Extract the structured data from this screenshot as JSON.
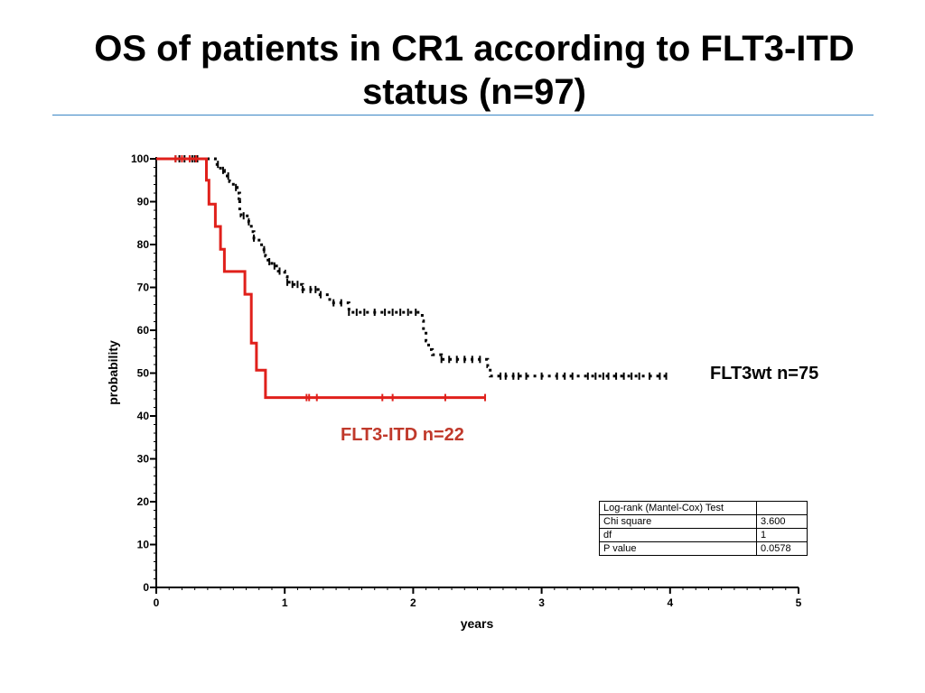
{
  "slide": {
    "title": "OS of patients in CR1 according to FLT3-ITD status (n=97)"
  },
  "colors": {
    "flt3wt": "#000000",
    "flt3itd": "#e0201b",
    "flt3itd_label": "#c0392b",
    "title_rule": "#3a86c4"
  },
  "chart_data": {
    "type": "line",
    "subtype": "kaplan-meier",
    "xlabel": "years",
    "ylabel": "probability",
    "xlim": [
      0,
      5
    ],
    "ylim": [
      0,
      100
    ],
    "x_ticks": [
      0,
      1,
      2,
      3,
      4,
      5
    ],
    "y_ticks": [
      0,
      10,
      20,
      30,
      40,
      50,
      60,
      70,
      80,
      90,
      100
    ],
    "grid": false,
    "series": [
      {
        "name": "FLT3wt n=75",
        "style": "dotted",
        "color": "#000000",
        "steps": [
          [
            0,
            100
          ],
          [
            0.45,
            100
          ],
          [
            0.46,
            98.7
          ],
          [
            0.5,
            97.3
          ],
          [
            0.53,
            96.0
          ],
          [
            0.57,
            94.7
          ],
          [
            0.6,
            93.3
          ],
          [
            0.63,
            92.0
          ],
          [
            0.65,
            90.7
          ],
          [
            0.63,
            90.7
          ],
          [
            0.65,
            88.0
          ],
          [
            0.66,
            86.7
          ],
          [
            0.72,
            85.3
          ],
          [
            0.74,
            83.0
          ],
          [
            0.76,
            81.5
          ],
          [
            0.8,
            80.4
          ],
          [
            0.82,
            78.8
          ],
          [
            0.85,
            77.3
          ],
          [
            0.87,
            76.0
          ],
          [
            0.9,
            75.0
          ],
          [
            0.95,
            73.8
          ],
          [
            1.0,
            72.5
          ],
          [
            1.02,
            71.2
          ],
          [
            1.05,
            70.7
          ],
          [
            1.14,
            69.5
          ],
          [
            1.26,
            68.3
          ],
          [
            1.35,
            66.4
          ],
          [
            1.5,
            64.2
          ],
          [
            2.07,
            62.2
          ],
          [
            2.08,
            60.0
          ],
          [
            2.1,
            57.5
          ],
          [
            2.12,
            55.5
          ],
          [
            2.15,
            54.3
          ],
          [
            2.22,
            53.2
          ],
          [
            2.58,
            51.5
          ],
          [
            2.6,
            49.3
          ],
          [
            3.97,
            49.3
          ]
        ],
        "censored": [
          0.15,
          0.18,
          0.22,
          0.26,
          0.28,
          0.3,
          0.32,
          0.48,
          0.52,
          0.56,
          0.62,
          0.68,
          0.72,
          0.76,
          0.84,
          0.88,
          0.92,
          0.96,
          1.02,
          1.06,
          1.1,
          1.14,
          1.2,
          1.24,
          1.28,
          1.38,
          1.44,
          1.5,
          1.56,
          1.62,
          1.7,
          1.78,
          1.84,
          1.9,
          1.96,
          2.02,
          2.22,
          2.28,
          2.34,
          2.4,
          2.46,
          2.52,
          2.68,
          2.72,
          2.78,
          2.82,
          2.88,
          3.0,
          3.12,
          3.18,
          3.24,
          3.36,
          3.42,
          3.48,
          3.52,
          3.58,
          3.64,
          3.7,
          3.76,
          3.84,
          3.92,
          3.97
        ]
      },
      {
        "name": "FLT3-ITD n=22",
        "style": "solid",
        "color": "#e0201b",
        "steps": [
          [
            0,
            100
          ],
          [
            0.39,
            100
          ],
          [
            0.39,
            95.0
          ],
          [
            0.41,
            95.0
          ],
          [
            0.41,
            89.4
          ],
          [
            0.46,
            89.4
          ],
          [
            0.46,
            84.2
          ],
          [
            0.5,
            84.2
          ],
          [
            0.5,
            78.9
          ],
          [
            0.53,
            78.9
          ],
          [
            0.53,
            73.7
          ],
          [
            0.69,
            73.7
          ],
          [
            0.69,
            68.4
          ],
          [
            0.74,
            68.4
          ],
          [
            0.74,
            57.0
          ],
          [
            0.78,
            57.0
          ],
          [
            0.78,
            50.7
          ],
          [
            0.85,
            50.7
          ],
          [
            0.85,
            44.3
          ],
          [
            2.56,
            44.3
          ]
        ],
        "censored": [
          0.15,
          0.2,
          0.26,
          0.31,
          1.17,
          1.19,
          1.25,
          1.76,
          1.84,
          2.25,
          2.56
        ]
      }
    ],
    "annotations": [
      {
        "text": "FLT3wt n=75",
        "series": 0
      },
      {
        "text": "FLT3-ITD n=22",
        "series": 1
      }
    ],
    "stats_table": {
      "title": "Log-rank (Mantel-Cox) Test",
      "rows": [
        {
          "label": "Chi square",
          "value": "3.600"
        },
        {
          "label": "df",
          "value": "1"
        },
        {
          "label": "P value",
          "value": "0.0578"
        }
      ]
    }
  }
}
